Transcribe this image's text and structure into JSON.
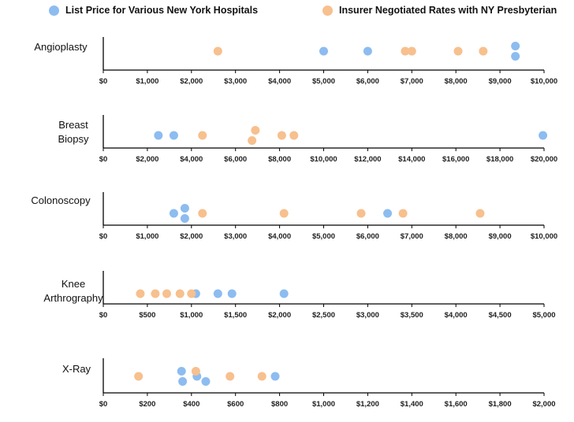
{
  "legend": {
    "list_price": "List Price for Various New York Hospitals",
    "negotiated": "Insurer Negotiated Rates with NY Presbyterian"
  },
  "colors": {
    "list_price": "#8dbcf0",
    "negotiated": "#f7c08e",
    "axis": "#000000"
  },
  "chart_data": [
    {
      "type": "scatter",
      "title": "Angioplasty",
      "label_lines": [
        "Angioplasty"
      ],
      "xlim": [
        0,
        10000
      ],
      "tick_labels": [
        "$0",
        "$1,000",
        "$2,000",
        "$3,000",
        "$4,000",
        "$5,000",
        "$6,000",
        "$7,000",
        "$8,000",
        "$9,000",
        "$10,000"
      ],
      "series": [
        {
          "name": "List Price for Various New York Hospitals",
          "points": [
            [
              5000,
              0
            ],
            [
              6000,
              0
            ],
            [
              9350,
              0.7
            ],
            [
              9350,
              -0.7
            ]
          ]
        },
        {
          "name": "Insurer Negotiated Rates with NY Presbyterian",
          "points": [
            [
              2600,
              0
            ],
            [
              6850,
              0
            ],
            [
              7000,
              0
            ],
            [
              8050,
              0
            ],
            [
              8620,
              0
            ]
          ]
        }
      ]
    },
    {
      "type": "scatter",
      "title": "Breast Biopsy",
      "label_lines": [
        "Breast",
        "Biopsy"
      ],
      "xlim": [
        0,
        20000
      ],
      "tick_labels": [
        "$0",
        "$2,000",
        "$4,000",
        "$6,000",
        "$8,000",
        "$10,000",
        "$12,000",
        "$14,000",
        "$16,000",
        "$18,000",
        "$20,000"
      ],
      "series": [
        {
          "name": "List Price for Various New York Hospitals",
          "points": [
            [
              2500,
              0
            ],
            [
              3200,
              0
            ],
            [
              19950,
              0
            ]
          ]
        },
        {
          "name": "Insurer Negotiated Rates with NY Presbyterian",
          "points": [
            [
              4500,
              0
            ],
            [
              6900,
              0.7
            ],
            [
              6750,
              -0.7
            ],
            [
              8100,
              0
            ],
            [
              8650,
              0
            ]
          ]
        }
      ]
    },
    {
      "type": "scatter",
      "title": "Colonoscopy",
      "label_lines": [
        "Colonoscopy"
      ],
      "xlim": [
        0,
        10000
      ],
      "tick_labels": [
        "$0",
        "$1,000",
        "$2,000",
        "$3,000",
        "$4,000",
        "$5,000",
        "$6,000",
        "$7,000",
        "$8,000",
        "$9,000",
        "$10,000"
      ],
      "series": [
        {
          "name": "List Price for Various New York Hospitals",
          "points": [
            [
              1600,
              0
            ],
            [
              1850,
              0.7
            ],
            [
              1850,
              -0.7
            ],
            [
              6450,
              0
            ]
          ]
        },
        {
          "name": "Insurer Negotiated Rates with NY Presbyterian",
          "points": [
            [
              2250,
              0
            ],
            [
              4100,
              0
            ],
            [
              5850,
              0
            ],
            [
              6800,
              0
            ],
            [
              8550,
              0
            ]
          ]
        }
      ]
    },
    {
      "type": "scatter",
      "title": "Knee Arthrography",
      "label_lines": [
        "Knee",
        "Arthrography"
      ],
      "xlim": [
        0,
        5000
      ],
      "tick_labels": [
        "$0",
        "$500",
        "$1,000",
        "$1,500",
        "$2,000",
        "$2,500",
        "$3,000",
        "$3,500",
        "$4,000",
        "$4,500",
        "$5,000"
      ],
      "series": [
        {
          "name": "List Price for Various New York Hospitals",
          "points": [
            [
              1050,
              0
            ],
            [
              1300,
              0
            ],
            [
              1460,
              0
            ],
            [
              2050,
              0
            ]
          ]
        },
        {
          "name": "Insurer Negotiated Rates with NY Presbyterian",
          "points": [
            [
              420,
              0
            ],
            [
              590,
              0
            ],
            [
              720,
              0
            ],
            [
              870,
              0
            ],
            [
              1000,
              0
            ]
          ]
        }
      ]
    },
    {
      "type": "scatter",
      "title": "X-Ray",
      "label_lines": [
        "X-Ray"
      ],
      "xlim": [
        0,
        2000
      ],
      "tick_labels": [
        "$0",
        "$200",
        "$400",
        "$600",
        "$800",
        "$1,000",
        "$1,200",
        "$1,400",
        "$1,600",
        "$1,800",
        "$2,000"
      ],
      "series": [
        {
          "name": "List Price for Various New York Hospitals",
          "points": [
            [
              355,
              0.7
            ],
            [
              360,
              -0.7
            ],
            [
              425,
              0
            ],
            [
              465,
              -0.7
            ],
            [
              780,
              0
            ]
          ]
        },
        {
          "name": "Insurer Negotiated Rates with NY Presbyterian",
          "points": [
            [
              160,
              0
            ],
            [
              420,
              0.7
            ],
            [
              575,
              0
            ],
            [
              720,
              0
            ]
          ]
        }
      ]
    }
  ]
}
